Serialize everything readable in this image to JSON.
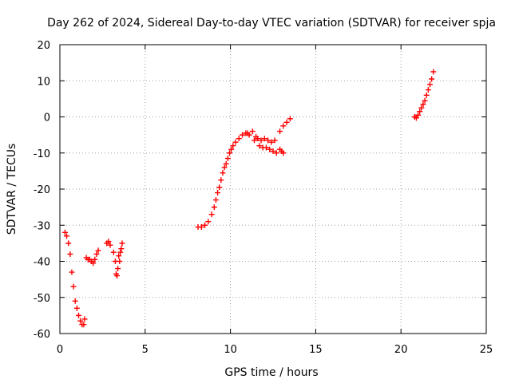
{
  "chart_data": {
    "type": "scatter",
    "title": "Day 262 of 2024, Sidereal Day-to-day VTEC variation (SDTVAR) for receiver spja",
    "xlabel": "GPS time / hours",
    "ylabel": "SDTVAR / TECUs",
    "xlim": [
      0,
      25
    ],
    "ylim": [
      -60,
      20
    ],
    "xticks": [
      0,
      5,
      10,
      15,
      20,
      25
    ],
    "yticks": [
      -60,
      -50,
      -40,
      -30,
      -20,
      -10,
      0,
      10,
      20
    ],
    "grid": true,
    "marker": "plus",
    "series": [
      {
        "name": "SDTVAR spja",
        "color": "#ff0000",
        "x": [
          0.3,
          0.4,
          0.5,
          0.6,
          0.7,
          0.8,
          0.9,
          1.0,
          1.1,
          1.2,
          1.3,
          1.4,
          1.45,
          1.55,
          1.65,
          1.75,
          1.85,
          1.95,
          2.05,
          2.15,
          2.25,
          2.75,
          2.85,
          2.95,
          3.15,
          3.25,
          3.3,
          3.35,
          3.4,
          3.45,
          3.5,
          3.55,
          3.6,
          3.65,
          8.1,
          8.3,
          8.5,
          8.7,
          8.9,
          9.05,
          9.15,
          9.25,
          9.35,
          9.45,
          9.55,
          9.65,
          9.75,
          9.85,
          9.95,
          10.05,
          10.15,
          10.3,
          10.5,
          10.7,
          10.9,
          11.0,
          11.1,
          11.3,
          11.4,
          11.5,
          11.6,
          11.8,
          12.0,
          12.2,
          12.4,
          12.6,
          11.7,
          11.9,
          12.1,
          12.3,
          12.5,
          12.7,
          12.9,
          13.0,
          13.1,
          12.9,
          13.1,
          13.3,
          13.5,
          20.8,
          20.9,
          21.0,
          21.1,
          21.2,
          21.3,
          21.4,
          21.5,
          21.6,
          21.7,
          21.8,
          21.9
        ],
        "y": [
          -32.0,
          -33.0,
          -35.0,
          -38.0,
          -43.0,
          -47.0,
          -51.0,
          -53.0,
          -55.0,
          -56.5,
          -57.5,
          -57.5,
          -56.0,
          -39.0,
          -39.5,
          -39.5,
          -40.0,
          -40.5,
          -39.5,
          -38.0,
          -37.0,
          -35.0,
          -34.5,
          -35.5,
          -37.5,
          -40.0,
          -43.5,
          -44.0,
          -42.0,
          -38.5,
          -40.0,
          -37.5,
          -36.5,
          -35.0,
          -30.5,
          -30.5,
          -30.0,
          -29.0,
          -27.0,
          -25.0,
          -23.0,
          -21.0,
          -19.5,
          -17.5,
          -15.5,
          -14.0,
          -13.0,
          -11.5,
          -10.0,
          -9.0,
          -8.0,
          -7.0,
          -6.0,
          -5.0,
          -4.5,
          -4.5,
          -5.0,
          -4.0,
          -6.5,
          -5.5,
          -6.0,
          -6.5,
          -6.0,
          -6.5,
          -7.0,
          -6.5,
          -8.0,
          -8.5,
          -8.5,
          -9.0,
          -9.5,
          -10.0,
          -9.0,
          -9.5,
          -10.0,
          -4.0,
          -2.5,
          -1.5,
          -0.5,
          0.0,
          -0.3,
          0.5,
          1.5,
          2.5,
          3.5,
          4.5,
          6.0,
          7.5,
          9.0,
          10.5,
          12.5
        ]
      }
    ]
  }
}
